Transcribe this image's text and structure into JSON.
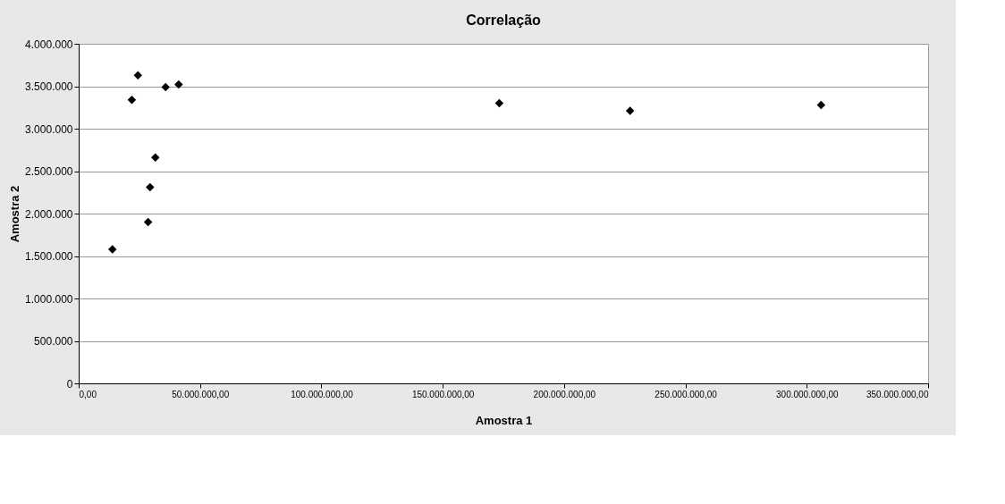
{
  "chart_data": {
    "type": "scatter",
    "title": "Correlação",
    "xlabel": "Amostra 1",
    "ylabel": "Amostra 2",
    "x": [
      13900000.0,
      21900000.0,
      24400000.0,
      28600000.0,
      29400000.0,
      31600000.0,
      35800000.0,
      41200000.0,
      173300000.0,
      227200000.0,
      305900000.0
    ],
    "series": [
      {
        "color": "#000000",
        "values": [
          1580000,
          3340000,
          3630000,
          1900000,
          2310000,
          2660000,
          3490000,
          3520000,
          3300000,
          3210000,
          3280000
        ]
      }
    ],
    "xlim": [
      0,
      350000000
    ],
    "xticks": [
      {
        "value": 0,
        "label": "0,00"
      },
      {
        "value": 50000000,
        "label": "50.000.000,00"
      },
      {
        "value": 100000000,
        "label": "100.000.000,00"
      },
      {
        "value": 150000000,
        "label": "150.000.000,00"
      },
      {
        "value": 200000000,
        "label": "200.000.000,00"
      },
      {
        "value": 250000000,
        "label": "250.000.000,00"
      },
      {
        "value": 300000000,
        "label": "300.000.000,00"
      },
      {
        "value": 350000000,
        "label": "350.000.000,00"
      }
    ],
    "ylim": [
      0,
      4000000
    ],
    "yticks": [
      0,
      {
        "value": 500000,
        "label": "500.000"
      },
      {
        "value": 1000000,
        "label": "1.000.000"
      },
      {
        "value": 1500000,
        "label": "1.500.000"
      },
      {
        "value": 2000000,
        "label": "2.000.000"
      },
      {
        "value": 2500000,
        "label": "2.500.000"
      },
      {
        "value": 3000000,
        "label": "3.000.000"
      },
      {
        "value": 3500000,
        "label": "3.500.000"
      },
      {
        "value": 4000000,
        "label": "4.000.000"
      }
    ],
    "grid": "y",
    "marker": "diamond",
    "legend": false
  }
}
